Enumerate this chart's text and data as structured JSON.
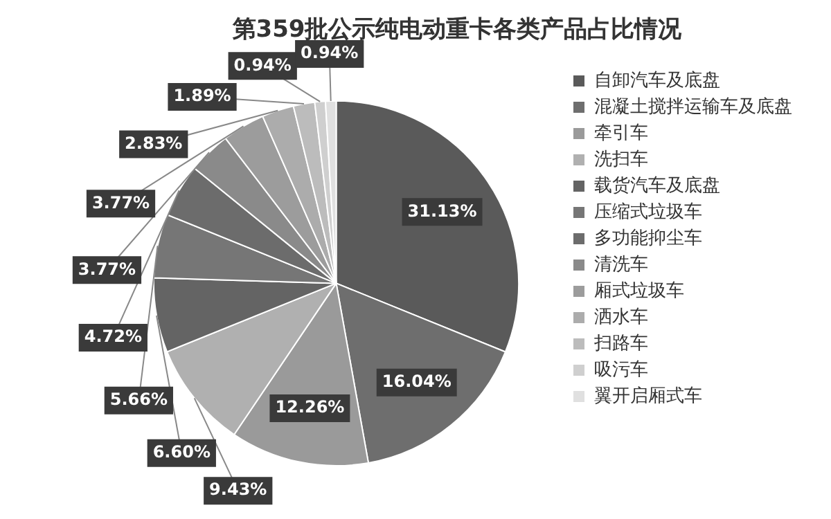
{
  "chart_data": {
    "type": "pie",
    "title": "第359批公示纯电动重卡各类产品占比情况",
    "categories": [
      "自卸汽车及底盘",
      "混凝土搅拌运输车及底盘",
      "牵引车",
      "洗扫车",
      "载货汽车及底盘",
      "压缩式垃圾车",
      "多功能抑尘车",
      "清洗车",
      "厢式垃圾车",
      "洒水车",
      "扫路车",
      "吸污车",
      "翼开启厢式车"
    ],
    "values": [
      31.13,
      16.04,
      12.26,
      9.43,
      6.6,
      5.66,
      4.72,
      3.77,
      3.77,
      2.83,
      1.89,
      0.94,
      0.94
    ],
    "value_labels": [
      "31.13%",
      "16.04%",
      "12.26%",
      "9.43%",
      "6.60%",
      "5.66%",
      "4.72%",
      "3.77%",
      "3.77%",
      "2.83%",
      "1.89%",
      "0.94%",
      "0.94%"
    ],
    "colors": [
      "#5a5a5a",
      "#6e6e6e",
      "#9a9a9a",
      "#b0b0b0",
      "#646464",
      "#767676",
      "#6c6c6c",
      "#8a8a8a",
      "#9c9c9c",
      "#acacac",
      "#bcbcbc",
      "#cfcfcf",
      "#e0e0e0"
    ],
    "legend": "right"
  }
}
